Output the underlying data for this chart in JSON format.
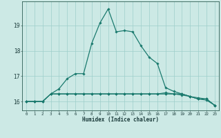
{
  "xlabel": "Humidex (Indice chaleur)",
  "x": [
    0,
    1,
    2,
    3,
    4,
    5,
    6,
    7,
    8,
    9,
    10,
    11,
    12,
    13,
    14,
    15,
    16,
    17,
    18,
    19,
    20,
    21,
    22,
    23
  ],
  "line1": [
    16.0,
    16.0,
    16.0,
    16.3,
    16.5,
    16.9,
    17.1,
    17.1,
    18.3,
    19.1,
    19.65,
    18.75,
    18.8,
    18.75,
    18.2,
    17.75,
    17.5,
    16.55,
    16.4,
    16.3,
    16.2,
    16.1,
    16.1,
    15.85
  ],
  "line2": [
    16.0,
    16.0,
    16.0,
    16.3,
    16.3,
    16.3,
    16.3,
    16.3,
    16.3,
    16.3,
    16.3,
    16.3,
    16.3,
    16.3,
    16.3,
    16.3,
    16.3,
    16.3,
    16.3,
    16.3,
    16.2,
    16.15,
    16.1,
    15.85
  ],
  "line3": [
    16.0,
    16.0,
    16.0,
    16.3,
    16.3,
    16.3,
    16.3,
    16.3,
    16.3,
    16.3,
    16.3,
    16.3,
    16.3,
    16.3,
    16.3,
    16.3,
    16.3,
    16.3,
    16.3,
    16.3,
    16.2,
    16.1,
    16.1,
    15.85
  ],
  "line4": [
    16.0,
    16.0,
    16.0,
    16.3,
    16.3,
    16.3,
    16.3,
    16.3,
    16.3,
    16.3,
    16.3,
    16.3,
    16.3,
    16.3,
    16.3,
    16.3,
    16.3,
    16.35,
    16.3,
    16.25,
    16.2,
    16.1,
    16.05,
    15.85
  ],
  "line_color": "#1a7a6e",
  "bg_color": "#cce9e5",
  "grid_color": "#9ececa",
  "ylim_min": 15.65,
  "ylim_max": 19.95,
  "yticks": [
    16,
    17,
    18,
    19
  ]
}
